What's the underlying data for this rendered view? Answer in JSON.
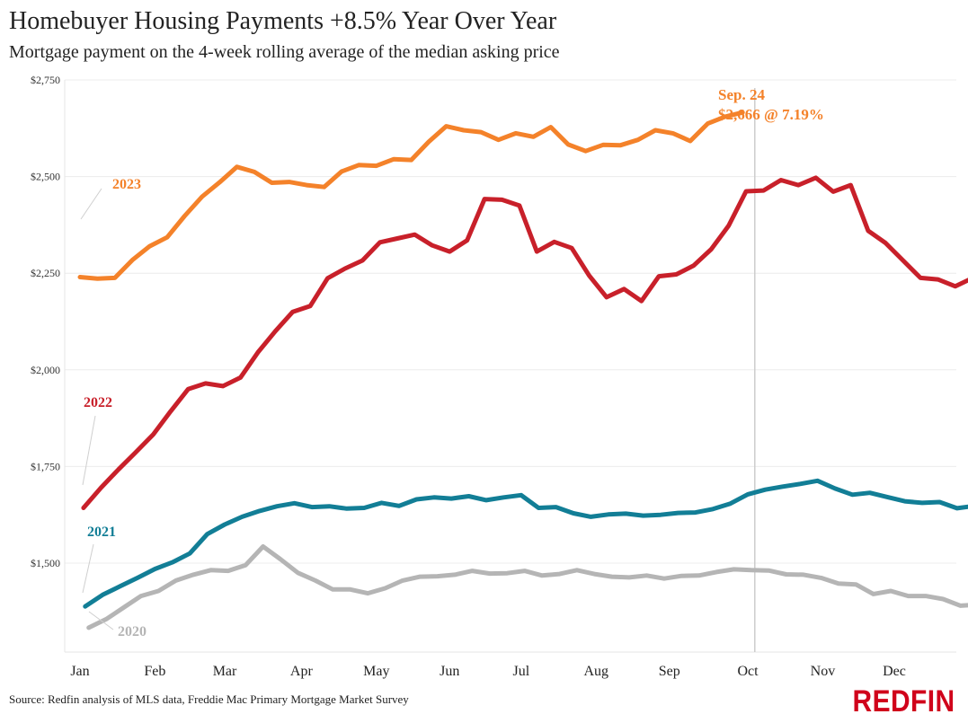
{
  "title": "Homebuyer Housing Payments +8.5% Year Over Year",
  "subtitle": "Mortgage payment on the 4-week rolling average of the median asking price",
  "source": "Source: Redfin analysis of MLS data, Freddie Mac Primary Mortgage Market Survey",
  "brand": "REDFIN",
  "colors": {
    "2023": "#f4822a",
    "2022": "#c8202a",
    "2021": "#127e96",
    "2020": "#b5b5b5",
    "brand": "#d0021b",
    "grid": "#ececec",
    "marker": "#cccccc"
  },
  "chart_data": {
    "type": "line",
    "title": "Homebuyer Housing Payments +8.5% Year Over Year",
    "subtitle": "Mortgage payment on the 4-week rolling average of the median asking price",
    "xlabel": "",
    "ylabel": "",
    "ylim": [
      1270,
      2750
    ],
    "yticks": [
      1500,
      1750,
      2000,
      2250,
      2500,
      2750
    ],
    "ytick_labels": [
      "$1,500",
      "$1,750",
      "$2,000",
      "$2,250",
      "$2,500",
      "$2,750"
    ],
    "xlim": [
      0,
      49
    ],
    "xticks": [
      0,
      4.3,
      8.3,
      12.7,
      17,
      21.2,
      25.3,
      29.6,
      33.8,
      38.3,
      42.6,
      46.7
    ],
    "xtick_labels": [
      "Jan",
      "Feb",
      "Mar",
      "Apr",
      "May",
      "Jun",
      "Jul",
      "Aug",
      "Sep",
      "Oct",
      "Nov",
      "Dec"
    ],
    "grid": true,
    "series": [
      {
        "name": "2020",
        "color": "#b5b5b5",
        "x_start": 0.5,
        "values": [
          1333,
          1355,
          1385,
          1415,
          1428,
          1455,
          1470,
          1482,
          1480,
          1495,
          1543,
          1510,
          1475,
          1455,
          1432,
          1432,
          1422,
          1435,
          1455,
          1465,
          1466,
          1470,
          1480,
          1473,
          1474,
          1480,
          1468,
          1472,
          1482,
          1472,
          1465,
          1463,
          1468,
          1460,
          1467,
          1468,
          1477,
          1484,
          1482,
          1481,
          1471,
          1470,
          1462,
          1447,
          1445,
          1420,
          1428,
          1415,
          1415,
          1407,
          1390,
          1393
        ]
      },
      {
        "name": "2021",
        "color": "#127e96",
        "x_start": 0.3,
        "values": [
          1388,
          1418,
          1440,
          1462,
          1485,
          1502,
          1525,
          1575,
          1600,
          1620,
          1635,
          1647,
          1655,
          1645,
          1647,
          1641,
          1643,
          1656,
          1648,
          1665,
          1670,
          1667,
          1673,
          1663,
          1670,
          1676,
          1643,
          1645,
          1629,
          1620,
          1626,
          1628,
          1623,
          1625,
          1630,
          1631,
          1640,
          1654,
          1678,
          1690,
          1698,
          1705,
          1713,
          1693,
          1677,
          1682,
          1671,
          1660,
          1656,
          1658,
          1642,
          1648
        ]
      },
      {
        "name": "2022",
        "color": "#c8202a",
        "x_start": 0.2,
        "values": [
          1643,
          1695,
          1742,
          1787,
          1833,
          1893,
          1950,
          1965,
          1958,
          1980,
          2045,
          2100,
          2150,
          2165,
          2237,
          2262,
          2283,
          2330,
          2340,
          2350,
          2322,
          2306,
          2335,
          2442,
          2440,
          2425,
          2306,
          2331,
          2315,
          2244,
          2188,
          2209,
          2178,
          2242,
          2247,
          2270,
          2312,
          2373,
          2462,
          2464,
          2491,
          2478,
          2497,
          2461,
          2478,
          2360,
          2328,
          2283,
          2238,
          2234,
          2216,
          2238
        ]
      },
      {
        "name": "2023",
        "color": "#f4822a",
        "x_start": 0.0,
        "values": [
          2240,
          2236,
          2238,
          2284,
          2320,
          2343,
          2398,
          2448,
          2485,
          2525,
          2512,
          2484,
          2486,
          2478,
          2473,
          2513,
          2530,
          2528,
          2545,
          2543,
          2590,
          2630,
          2620,
          2615,
          2595,
          2612,
          2603,
          2628,
          2583,
          2566,
          2582,
          2581,
          2595,
          2620,
          2612,
          2592,
          2637,
          2655,
          2666
        ]
      }
    ],
    "series_labels": [
      "2023",
      "2022",
      "2021",
      "2020"
    ],
    "annotation": {
      "line1": "Sep. 24",
      "line2": "$2,666 @ 7.19%",
      "x": 38.7
    }
  }
}
